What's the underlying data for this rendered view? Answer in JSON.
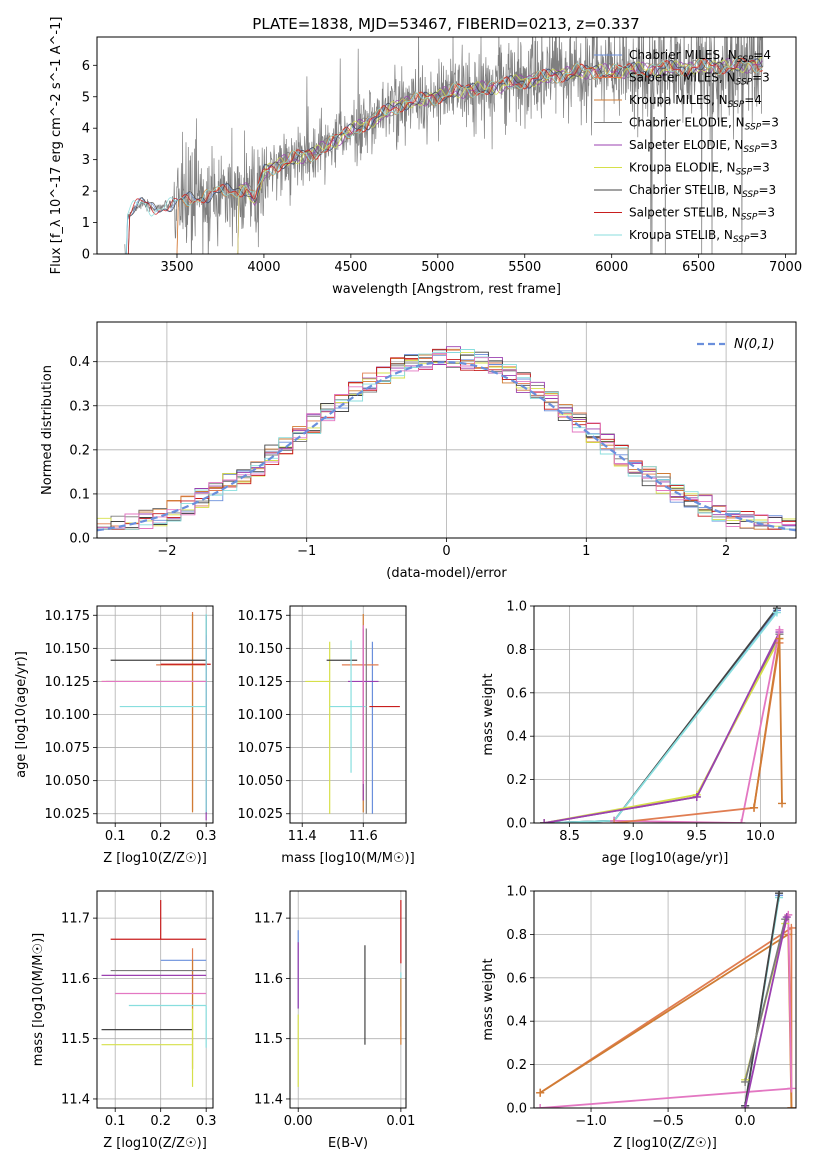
{
  "figure_title": "PLATE=1838, MJD=53467, FIBERID=0213, z=0.337",
  "colors": {
    "Chabrier MILES": "#6a8fdc",
    "Salpeter MILES": "#e07d52",
    "Kroupa MILES": "#d07c34",
    "Chabrier ELODIE": "#7a7a7a",
    "Salpeter ELODIE": "#9b40b0",
    "Kroupa ELODIE": "#d6e04a",
    "Chabrier STELIB": "#444444",
    "Salpeter STELIB": "#c81e1e",
    "Kroupa STELIB": "#88dede",
    "pink": "#e377c2",
    "gaussian": "#6a8fdc",
    "grid": "#b0b0b0"
  },
  "chart_data": [
    {
      "id": "spectrum",
      "type": "line",
      "title": "PLATE=1838, MJD=53467, FIBERID=0213, z=0.337",
      "xlabel": "wavelength [Angstrom, rest frame]",
      "ylabel": "Flux [f_λ 10^-17 erg cm^-2 s^-1 A^-1]",
      "xlim": [
        3040,
        7060
      ],
      "ylim": [
        0,
        6.9
      ],
      "xticks": [
        3500,
        4000,
        4500,
        5000,
        5500,
        6000,
        6500,
        7000
      ],
      "yticks": [
        0,
        1,
        2,
        3,
        4,
        5,
        6
      ],
      "grid": false,
      "legend_position": "right",
      "legend": [
        "Chabrier MILES, N_SSP=4",
        "Salpeter MILES, N_SSP=3",
        "Kroupa MILES, N_SSP=4",
        "Chabrier ELODIE, N_SSP=3",
        "Salpeter ELODIE, N_SSP=3",
        "Kroupa ELODIE, N_SSP=3",
        "Chabrier STELIB, N_SSP=3",
        "Salpeter STELIB, N_SSP=3",
        "Kroupa STELIB, N_SSP=3"
      ],
      "continuum": [
        [
          3210,
          0.0
        ],
        [
          3215,
          1.2
        ],
        [
          3250,
          1.45
        ],
        [
          3300,
          1.6
        ],
        [
          3350,
          1.45
        ],
        [
          3400,
          1.5
        ],
        [
          3500,
          1.6
        ],
        [
          3600,
          1.8
        ],
        [
          3700,
          1.9
        ],
        [
          3800,
          2.0
        ],
        [
          3900,
          2.1
        ],
        [
          3950,
          1.7
        ],
        [
          4000,
          2.6
        ],
        [
          4100,
          2.9
        ],
        [
          4200,
          3.1
        ],
        [
          4300,
          3.2
        ],
        [
          4400,
          3.6
        ],
        [
          4500,
          3.9
        ],
        [
          4600,
          4.2
        ],
        [
          4700,
          4.5
        ],
        [
          4800,
          4.8
        ],
        [
          4900,
          4.9
        ],
        [
          5000,
          5.0
        ],
        [
          5100,
          5.2
        ],
        [
          5200,
          5.2
        ],
        [
          5300,
          5.3
        ],
        [
          5400,
          5.4
        ],
        [
          5500,
          5.5
        ],
        [
          5600,
          5.6
        ],
        [
          5700,
          5.7
        ],
        [
          5800,
          5.8
        ],
        [
          5900,
          5.8
        ],
        [
          6000,
          5.8
        ],
        [
          6100,
          5.85
        ],
        [
          6200,
          5.85
        ],
        [
          6300,
          5.9
        ],
        [
          6400,
          5.9
        ],
        [
          6500,
          5.95
        ],
        [
          6600,
          5.95
        ],
        [
          6700,
          6.0
        ],
        [
          6800,
          6.0
        ],
        [
          6850,
          6.0
        ]
      ]
    },
    {
      "id": "residuals",
      "type": "line",
      "xlabel": "(data-model)/error",
      "ylabel": "Normed distribution",
      "xlim": [
        -2.5,
        2.5
      ],
      "ylim": [
        0,
        0.49
      ],
      "xticks": [
        -2,
        -1,
        0,
        1,
        2
      ],
      "yticks": [
        0.0,
        0.1,
        0.2,
        0.3,
        0.4
      ],
      "grid": true,
      "legend_position": "top-right",
      "legend": [
        "N(0,1)"
      ]
    },
    {
      "id": "age-vs-Z",
      "type": "scatter",
      "xlabel": "Z [log10(Z/Z☉)]",
      "ylabel": "age [log10(age/yr)]",
      "xlim": [
        0.06,
        0.315
      ],
      "ylim": [
        10.018,
        10.182
      ],
      "xticks": [
        0.1,
        0.2,
        0.3
      ],
      "yticks": [
        10.025,
        10.05,
        10.075,
        10.1,
        10.125,
        10.15,
        10.175
      ],
      "grid": true,
      "errorbars": [
        {
          "series": "Chabrier MILES",
          "x": 0.3,
          "y": 10.125,
          "xerr": [
            0.22,
            0.0
          ],
          "yerr": [
            0.1,
            0.05
          ]
        },
        {
          "series": "Salpeter MILES",
          "x": 0.27,
          "y": 10.1375,
          "xerr": [
            0.08,
            0.03
          ],
          "yerr": [
            0.11,
            0.04
          ]
        },
        {
          "series": "Kroupa MILES",
          "x": 0.27,
          "y": 10.13,
          "xerr": [
            0.0,
            0.0
          ],
          "yerr": [
            0.104,
            0.046
          ]
        },
        {
          "series": "Chabrier ELODIE",
          "x": 0.3,
          "y": 10.125,
          "xerr": [
            0.0,
            0.0
          ],
          "yerr": [
            0.1,
            0.05
          ]
        },
        {
          "series": "Salpeter ELODIE",
          "x": 0.3,
          "y": 10.1,
          "xerr": [
            0.0,
            0.0
          ],
          "yerr": [
            0.08,
            0.06
          ]
        },
        {
          "series": "Kroupa ELODIE",
          "x": 0.2,
          "y": 10.125,
          "xerr": [
            0.13,
            0.1
          ],
          "yerr": [
            0.0,
            0.0
          ]
        },
        {
          "series": "Chabrier STELIB",
          "x": 0.2,
          "y": 10.141,
          "xerr": [
            0.11,
            0.1
          ],
          "yerr": [
            0.0,
            0.0
          ]
        },
        {
          "series": "Salpeter STELIB",
          "x": 0.28,
          "y": 10.138,
          "xerr": [
            0.08,
            0.03
          ],
          "yerr": [
            0.0,
            0.0
          ]
        },
        {
          "series": "Kroupa STELIB",
          "x": 0.3,
          "y": 10.106,
          "xerr": [
            0.19,
            0.0
          ],
          "yerr": [
            0.08,
            0.07
          ]
        },
        {
          "series": "pink",
          "x": 0.3,
          "y": 10.125,
          "xerr": [
            0.23,
            0.0
          ],
          "yerr": [
            0.0,
            0.0
          ]
        }
      ]
    },
    {
      "id": "age-vs-mass",
      "type": "scatter",
      "xlabel": "mass [log10(M/M☉)]",
      "ylabel": "",
      "xlim": [
        11.36,
        11.74
      ],
      "ylim": [
        10.018,
        10.182
      ],
      "xticks": [
        11.4,
        11.6
      ],
      "yticks": [
        10.025,
        10.05,
        10.075,
        10.1,
        10.125,
        10.15,
        10.175
      ],
      "grid": true,
      "errorbars": [
        {
          "series": "Chabrier MILES",
          "x": 11.63,
          "y": 10.125,
          "xerr": [
            0.0,
            0.0
          ],
          "yerr": [
            0.1,
            0.03
          ]
        },
        {
          "series": "Salpeter MILES",
          "x": 11.6,
          "y": 10.1375,
          "xerr": [
            0.07,
            0.05
          ],
          "yerr": [
            0.0,
            0.0
          ]
        },
        {
          "series": "Kroupa MILES",
          "x": 11.6,
          "y": 10.13,
          "xerr": [
            0.0,
            0.0
          ],
          "yerr": [
            0.104,
            0.046
          ]
        },
        {
          "series": "Chabrier ELODIE",
          "x": 11.61,
          "y": 10.125,
          "xerr": [
            0.0,
            0.0
          ],
          "yerr": [
            0.1,
            0.04
          ]
        },
        {
          "series": "Salpeter ELODIE",
          "x": 11.6,
          "y": 10.125,
          "xerr": [
            0.05,
            0.05
          ],
          "yerr": [
            0.09,
            0.04
          ]
        },
        {
          "series": "Kroupa ELODIE",
          "x": 11.49,
          "y": 10.125,
          "xerr": [
            0.08,
            0.0
          ],
          "yerr": [
            0.1,
            0.03
          ]
        },
        {
          "series": "Chabrier STELIB",
          "x": 11.53,
          "y": 10.141,
          "xerr": [
            0.05,
            0.05
          ],
          "yerr": [
            0.0,
            0.0
          ]
        },
        {
          "series": "Salpeter STELIB",
          "x": 11.67,
          "y": 10.106,
          "xerr": [
            0.05,
            0.05
          ],
          "yerr": [
            0.0,
            0.0
          ]
        },
        {
          "series": "Kroupa STELIB",
          "x": 11.56,
          "y": 10.106,
          "xerr": [
            0.07,
            0.05
          ],
          "yerr": [
            0.05,
            0.05
          ]
        },
        {
          "series": "pink",
          "x": 11.6,
          "y": 10.1375,
          "xerr": [
            0.0,
            0.0
          ],
          "yerr": [
            0.09,
            0.03
          ]
        }
      ]
    },
    {
      "id": "mass-weight-vs-age",
      "type": "line",
      "xlabel": "age [log10(age/yr)]",
      "ylabel": "mass weight",
      "xlim": [
        8.22,
        10.28
      ],
      "ylim": [
        0,
        1.0
      ],
      "xticks": [
        8.5,
        9.0,
        9.5,
        10.0
      ],
      "yticks": [
        0.0,
        0.2,
        0.4,
        0.6,
        0.8,
        1.0
      ],
      "grid": true,
      "series": [
        {
          "series": "Chabrier MILES",
          "x": [
            8.3,
            8.85,
            10.13
          ],
          "y": [
            0.0,
            0.01,
            0.98
          ]
        },
        {
          "series": "Chabrier STELIB",
          "x": [
            8.3,
            8.85,
            10.13
          ],
          "y": [
            0.0,
            0.01,
            0.99
          ]
        },
        {
          "series": "Kroupa STELIB",
          "x": [
            8.3,
            8.85,
            10.13
          ],
          "y": [
            0.0,
            0.01,
            0.97
          ]
        },
        {
          "series": "Chabrier ELODIE",
          "x": [
            8.3,
            9.5,
            10.15
          ],
          "y": [
            0.0,
            0.12,
            0.87
          ]
        },
        {
          "series": "Kroupa ELODIE",
          "x": [
            8.3,
            9.5,
            10.15
          ],
          "y": [
            0.0,
            0.13,
            0.85
          ]
        },
        {
          "series": "Salpeter ELODIE",
          "x": [
            8.3,
            9.5,
            10.15
          ],
          "y": [
            0.0,
            0.12,
            0.88
          ]
        },
        {
          "series": "pink",
          "x": [
            8.85,
            9.85,
            10.15
          ],
          "y": [
            0.01,
            0.0,
            0.89
          ]
        },
        {
          "series": "Salpeter MILES",
          "x": [
            8.85,
            9.95,
            10.15
          ],
          "y": [
            0.0,
            0.07,
            0.83
          ]
        },
        {
          "series": "Kroupa MILES",
          "x": [
            9.95,
            10.15,
            10.17
          ],
          "y": [
            0.07,
            0.85,
            0.09
          ]
        }
      ]
    },
    {
      "id": "mass-vs-Z",
      "type": "scatter",
      "xlabel": "Z [log10(Z/Z☉)]",
      "ylabel": "mass [log10(M/M☉)]",
      "xlim": [
        0.06,
        0.315
      ],
      "ylim": [
        11.385,
        11.745
      ],
      "xticks": [
        0.1,
        0.2,
        0.3
      ],
      "yticks": [
        11.4,
        11.5,
        11.6,
        11.7
      ],
      "grid": true,
      "errorbars": [
        {
          "series": "Chabrier MILES",
          "x": 0.3,
          "y": 11.63,
          "xerr": [
            0.1,
            0.0
          ],
          "yerr": [
            0.0,
            0.0
          ]
        },
        {
          "series": "Salpeter MILES",
          "x": 0.27,
          "y": 11.65,
          "xerr": [
            0.0,
            0.0
          ],
          "yerr": [
            0.1,
            0.0
          ]
        },
        {
          "series": "Kroupa MILES",
          "x": 0.27,
          "y": 11.55,
          "xerr": [
            0.0,
            0.0
          ],
          "yerr": [
            0.1,
            0.08
          ]
        },
        {
          "series": "Chabrier ELODIE",
          "x": 0.2,
          "y": 11.613,
          "xerr": [
            0.11,
            0.1
          ],
          "yerr": [
            0.0,
            0.0
          ]
        },
        {
          "series": "Salpeter ELODIE",
          "x": 0.3,
          "y": 11.605,
          "xerr": [
            0.23,
            0.0
          ],
          "yerr": [
            0.0,
            0.0
          ]
        },
        {
          "series": "Kroupa ELODIE",
          "x": 0.2,
          "y": 11.49,
          "xerr": [
            0.13,
            0.07
          ],
          "yerr": [
            0.0,
            0.0
          ]
        },
        {
          "series": "Chabrier STELIB",
          "x": 0.2,
          "y": 11.515,
          "xerr": [
            0.13,
            0.07
          ],
          "yerr": [
            0.0,
            0.0
          ]
        },
        {
          "series": "Salpeter STELIB",
          "x": 0.2,
          "y": 11.665,
          "xerr": [
            0.11,
            0.1
          ],
          "yerr": [
            0.0,
            0.065
          ]
        },
        {
          "series": "Kroupa STELIB",
          "x": 0.3,
          "y": 11.555,
          "xerr": [
            0.17,
            0.0
          ],
          "yerr": [
            0.07,
            0.0
          ]
        },
        {
          "series": "pink",
          "x": 0.3,
          "y": 11.575,
          "xerr": [
            0.2,
            0.0
          ],
          "yerr": [
            0.0,
            0.0
          ]
        },
        {
          "series": "Kroupa ELODIE",
          "x": 0.27,
          "y": 11.5,
          "xerr": [
            0.0,
            0.0
          ],
          "yerr": [
            0.08,
            0.05
          ]
        }
      ]
    },
    {
      "id": "mass-vs-ebv",
      "type": "scatter",
      "xlabel": "E(B-V)",
      "ylabel": "",
      "xlim": [
        -0.0008,
        0.0105
      ],
      "ylim": [
        11.385,
        11.745
      ],
      "xticks": [
        0.0,
        0.01
      ],
      "yticks": [
        11.4,
        11.5,
        11.6,
        11.7
      ],
      "grid": true,
      "errorbars": [
        {
          "series": "Chabrier MILES",
          "x": 0.0,
          "y": 11.6,
          "xerr": [
            0.0,
            0.0
          ],
          "yerr": [
            0.05,
            0.08
          ]
        },
        {
          "series": "Salpeter ELODIE",
          "x": 0.0,
          "y": 11.6,
          "xerr": [
            0.0,
            0.0
          ],
          "yerr": [
            0.05,
            0.06
          ]
        },
        {
          "series": "Kroupa ELODIE",
          "x": 0.0,
          "y": 11.49,
          "xerr": [
            0.0,
            0.0
          ],
          "yerr": [
            0.07,
            0.05
          ]
        },
        {
          "series": "Chabrier STELIB",
          "x": 0.0065,
          "y": 11.57,
          "xerr": [
            0.0,
            0.0
          ],
          "yerr": [
            0.08,
            0.085
          ]
        },
        {
          "series": "Salpeter STELIB",
          "x": 0.01,
          "y": 11.665,
          "xerr": [
            0.0,
            0.0
          ],
          "yerr": [
            0.04,
            0.065
          ]
        },
        {
          "series": "Kroupa STELIB",
          "x": 0.01,
          "y": 11.57,
          "xerr": [
            0.0,
            0.0
          ],
          "yerr": [
            0.05,
            0.04
          ]
        },
        {
          "series": "Kroupa MILES",
          "x": 0.01,
          "y": 11.55,
          "xerr": [
            0.0,
            0.0
          ],
          "yerr": [
            0.06,
            0.05
          ]
        }
      ]
    },
    {
      "id": "mass-weight-vs-Z",
      "type": "line",
      "xlabel": "Z [log10(Z/Z☉)]",
      "ylabel": "mass weight",
      "xlim": [
        -1.37,
        0.33
      ],
      "ylim": [
        0,
        1.0
      ],
      "xticks": [
        -1.0,
        -0.5,
        0.0
      ],
      "yticks": [
        0.0,
        0.2,
        0.4,
        0.6,
        0.8,
        1.0
      ],
      "grid": true,
      "series": [
        {
          "series": "Salpeter MILES",
          "x": [
            -1.33,
            0.3,
            0.3
          ],
          "y": [
            0.07,
            0.83,
            0.0
          ]
        },
        {
          "series": "Kroupa MILES",
          "x": [
            -1.33,
            0.28,
            0.3
          ],
          "y": [
            0.07,
            0.8,
            0.0
          ]
        },
        {
          "series": "pink",
          "x": [
            -1.33,
            0.3,
            0.28
          ],
          "y": [
            0.0,
            0.09,
            0.89
          ]
        },
        {
          "series": "Chabrier MILES",
          "x": [
            0.0,
            0.22
          ],
          "y": [
            0.01,
            0.98
          ]
        },
        {
          "series": "Kroupa STELIB",
          "x": [
            0.0,
            0.22
          ],
          "y": [
            0.01,
            0.97
          ]
        },
        {
          "series": "Chabrier STELIB",
          "x": [
            0.0,
            0.22
          ],
          "y": [
            0.01,
            0.99
          ]
        },
        {
          "series": "Kroupa ELODIE",
          "x": [
            0.0,
            0.26
          ],
          "y": [
            0.13,
            0.85
          ]
        },
        {
          "series": "Chabrier ELODIE",
          "x": [
            0.0,
            0.26
          ],
          "y": [
            0.12,
            0.87
          ]
        },
        {
          "series": "Salpeter ELODIE",
          "x": [
            0.0,
            0.27
          ],
          "y": [
            0.0,
            0.88
          ]
        }
      ]
    }
  ]
}
